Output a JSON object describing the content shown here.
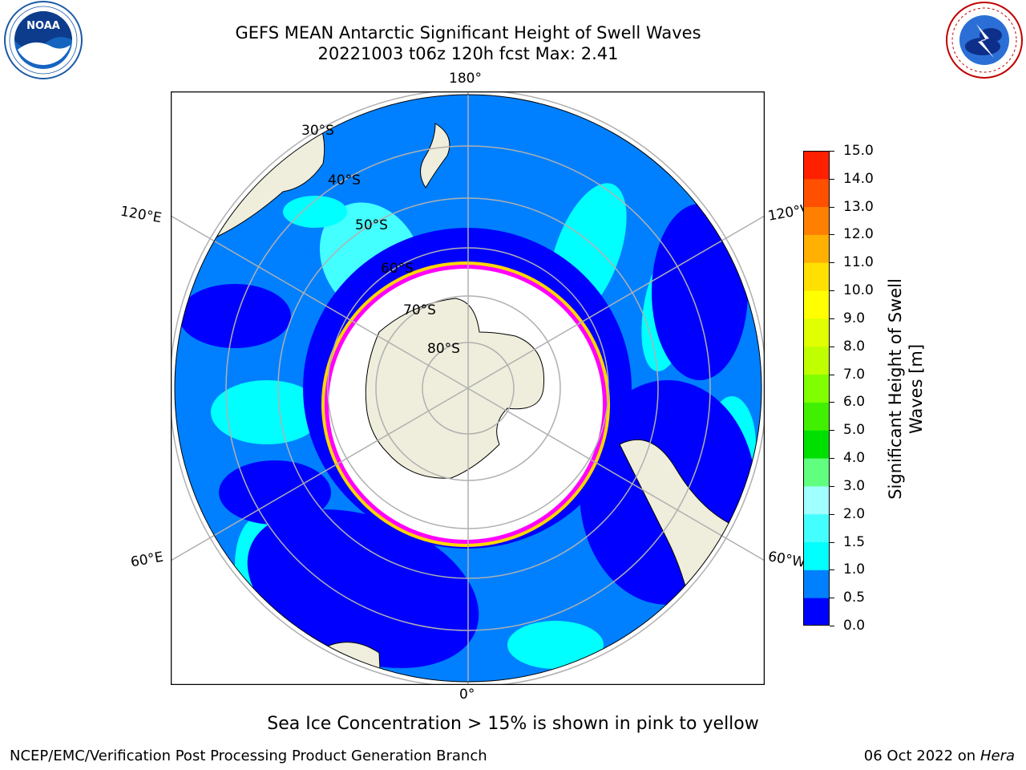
{
  "title": {
    "line1": "GEFS MEAN Antarctic Significant Height of Swell Waves",
    "line2": "20221003 t06z 120h fcst   Max: 2.41"
  },
  "logos": {
    "left": "noaa-logo",
    "right": "nws-logo"
  },
  "map": {
    "projection": "south-polar-stereographic",
    "lon_labels": {
      "top": "180°",
      "bottom": "0°",
      "left_upper": "120°E",
      "left_lower": "60°E",
      "right_upper": "120°W",
      "right_lower": "60°W"
    },
    "lat_labels": [
      "30°S",
      "40°S",
      "50°S",
      "60°S",
      "70°S",
      "80°S"
    ],
    "colors": {
      "ocean_low": "#0000ff",
      "ocean_mid": "#0080ff",
      "ocean_high": "#00ffff",
      "land": "#efeedc",
      "sea_ice": "#ffffff",
      "ice_edge_pink": "#ff00ff",
      "ice_edge_yellow": "#ffd700",
      "grid": "#b0b0b0"
    }
  },
  "colorbar": {
    "label": "Significant Height of Swell Waves [m]",
    "label_line1": "Significant Height of Swell",
    "label_line2": "Waves [m]",
    "ticks": [
      "15.0",
      "14.0",
      "13.0",
      "12.0",
      "11.0",
      "10.0",
      "9.0",
      "8.0",
      "7.0",
      "6.0",
      "5.0",
      "4.0",
      "3.0",
      "2.0",
      "1.5",
      "1.0",
      "0.5",
      "0.0"
    ],
    "colors": [
      "#0000ff",
      "#0080ff",
      "#00ffff",
      "#44ffff",
      "#a0ffff",
      "#60ff80",
      "#00e000",
      "#40f000",
      "#80ff00",
      "#c0ff00",
      "#e0ff00",
      "#ffff00",
      "#ffe000",
      "#ffb000",
      "#ff8000",
      "#ff5000",
      "#ff2000",
      "#ff0000"
    ]
  },
  "ice_note": "Sea Ice Concentration > 15% is shown in pink to yellow",
  "footer": {
    "left": "NCEP/EMC/Verification Post Processing Product Generation Branch",
    "date": "06 Oct 2022 on ",
    "host": "Hera"
  }
}
